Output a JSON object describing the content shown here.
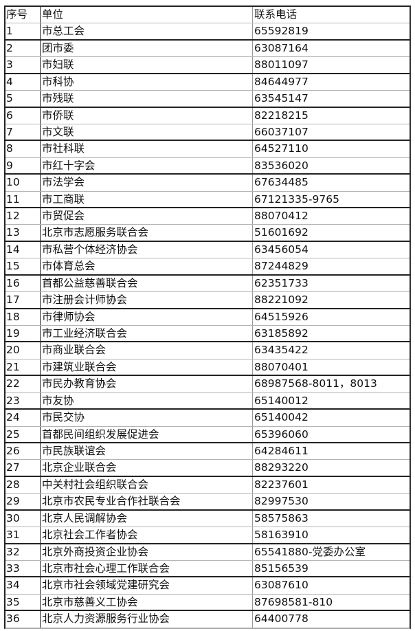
{
  "headers": [
    "序号",
    "单位",
    "联系电话"
  ],
  "rows": [
    [
      "1",
      "市总工会",
      "65592819"
    ],
    [
      "2",
      "团市委",
      "63087164"
    ],
    [
      "3",
      "市妇联",
      "88011097"
    ],
    [
      "4",
      "市科协",
      "84644977"
    ],
    [
      "5",
      "市残联",
      "63545147"
    ],
    [
      "6",
      "市侨联",
      "82218215"
    ],
    [
      "7",
      "市文联",
      "66037107"
    ],
    [
      "8",
      "市社科联",
      "64527110"
    ],
    [
      "9",
      "市红十字会",
      "83536020"
    ],
    [
      "10",
      "市法学会",
      "67634485"
    ],
    [
      "11",
      "市工商联",
      "67121335-9765"
    ],
    [
      "12",
      "市贸促会",
      "88070412"
    ],
    [
      "13",
      "北京市志愿服务联合会",
      "51601692"
    ],
    [
      "14",
      "市私营个体经济协会",
      "63456054"
    ],
    [
      "15",
      "市体育总会",
      "87244829"
    ],
    [
      "16",
      "首都公益慈善联合会",
      "62351733"
    ],
    [
      "17",
      "市注册会计师协会",
      "88221092"
    ],
    [
      "18",
      "市律师协会",
      "64515926"
    ],
    [
      "19",
      "市工业经济联合会",
      "63185892"
    ],
    [
      "20",
      "市商业联合会",
      "63435422"
    ],
    [
      "21",
      "市建筑业联合会",
      "88070401"
    ],
    [
      "22",
      "市民办教育协会",
      "68987568-8011，8013"
    ],
    [
      "23",
      "市友协",
      "65140012"
    ],
    [
      "24",
      "市民交协",
      "65140042"
    ],
    [
      "25",
      "首都民间组织发展促进会",
      "65396060"
    ],
    [
      "26",
      "市民族联谊会",
      "64284611"
    ],
    [
      "27",
      "北京企业联合会",
      "88293220"
    ],
    [
      "28",
      "中关村社会组织联合会",
      "82237601"
    ],
    [
      "29",
      "北京市农民专业合作社联合会",
      "82997530"
    ],
    [
      "30",
      "北京人民调解协会",
      "58575863"
    ],
    [
      "31",
      "北京社会工作者协会",
      "58163910"
    ],
    [
      "32",
      "北京外商投资企业协会",
      "65541880-党委办公室"
    ],
    [
      "33",
      "北京市社会心理工作联合会",
      "85156539"
    ],
    [
      "34",
      "北京市社会领域党建研究会",
      "63087610"
    ],
    [
      "35",
      "北京市慈善义工协会",
      "87698581-810"
    ],
    [
      "36",
      "北京人力资源服务行业协会",
      "64400778"
    ]
  ]
}
